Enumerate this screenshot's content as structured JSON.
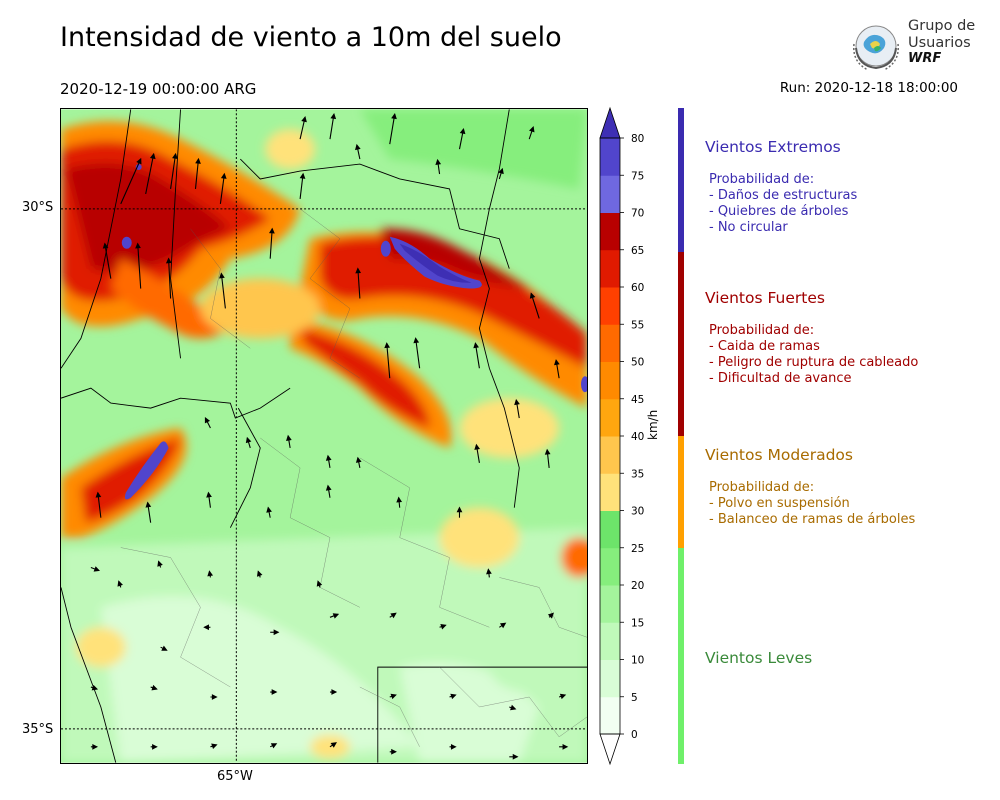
{
  "header": {
    "title": "Intensidad de viento a 10m del suelo",
    "valid_time": "2020-12-19 00:00:00 ARG",
    "run": "Run: 2020-12-18 18:00:00"
  },
  "logo": {
    "line1": "Grupo de",
    "line2": "Usuarios",
    "line3": "WRF"
  },
  "map": {
    "lat_labels": [
      "30°S",
      "35°S"
    ],
    "lon_labels": [
      "65°W"
    ]
  },
  "colorbar": {
    "unit": "km/h",
    "ticks": [
      "0",
      "5",
      "10",
      "15",
      "20",
      "25",
      "30",
      "35",
      "40",
      "45",
      "50",
      "55",
      "60",
      "65",
      "70",
      "75",
      "80"
    ],
    "colors": [
      "#f2fff2",
      "#d9fdd6",
      "#c0f9ba",
      "#a4f49c",
      "#86ee7d",
      "#6de46a",
      "#ffe27a",
      "#ffc64d",
      "#ffa60f",
      "#ff8a00",
      "#ff6a00",
      "#ff4000",
      "#e01a00",
      "#b80000",
      "#6f68e0",
      "#5145cc",
      "#3e2fb4"
    ]
  },
  "categories": [
    {
      "name": "Vientos Extremos",
      "prob": "Probabilidad de:",
      "items": [
        "- Daños de estructuras",
        "- Quiebres de árboles",
        "- No circular"
      ],
      "color": "#3a2bb0"
    },
    {
      "name": "Vientos Fuertes",
      "prob": "Probabilidad de:",
      "items": [
        "- Caida de ramas",
        "- Peligro de ruptura de cableado",
        "- Dificultad de avance"
      ],
      "color": "#a00000"
    },
    {
      "name": "Vientos Moderados",
      "prob": "Probabilidad de:",
      "items": [
        "- Polvo en suspensión",
        "- Balanceo de ramas de árboles"
      ],
      "color": "#a86b00"
    },
    {
      "name": "Vientos Leves",
      "prob": "",
      "items": [],
      "color": "#3a8a3a",
      "bar_color": "#6ff06a"
    }
  ]
}
